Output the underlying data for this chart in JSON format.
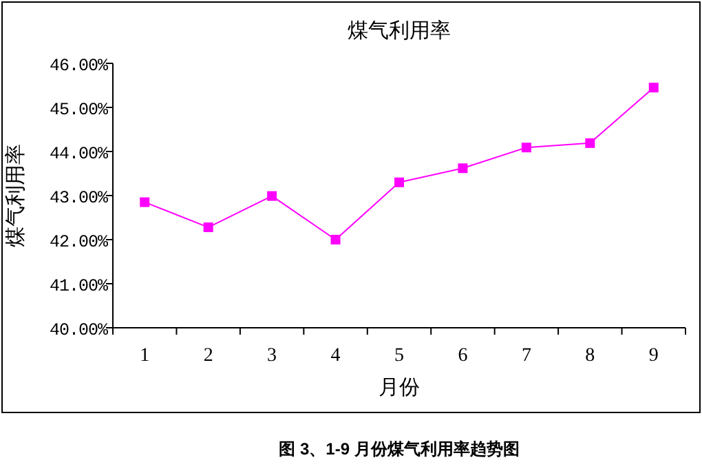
{
  "chart_data": {
    "type": "line",
    "title": "煤气利用率",
    "xlabel": "月份",
    "ylabel": "煤气利用率",
    "categories": [
      "1",
      "2",
      "3",
      "4",
      "5",
      "6",
      "7",
      "8",
      "9"
    ],
    "series": [
      {
        "color": "#ff00ff",
        "values": [
          42.85,
          42.28,
          42.99,
          42.0,
          43.3,
          43.62,
          44.09,
          44.19,
          45.45
        ]
      }
    ],
    "ylim": [
      40,
      46
    ],
    "yticks": [
      {
        "value": 40,
        "label": "40.00%"
      },
      {
        "value": 41,
        "label": "41.00%"
      },
      {
        "value": 42,
        "label": "42.00%"
      },
      {
        "value": 43,
        "label": "43.00%"
      },
      {
        "value": 44,
        "label": "44.00%"
      },
      {
        "value": 45,
        "label": "45.00%"
      },
      {
        "value": 46,
        "label": "46.00%"
      }
    ],
    "marker": "square",
    "line_style": "solid",
    "grid": false,
    "annotations": [
      "图 3、1-9 月份煤气利用率趋势图"
    ]
  }
}
